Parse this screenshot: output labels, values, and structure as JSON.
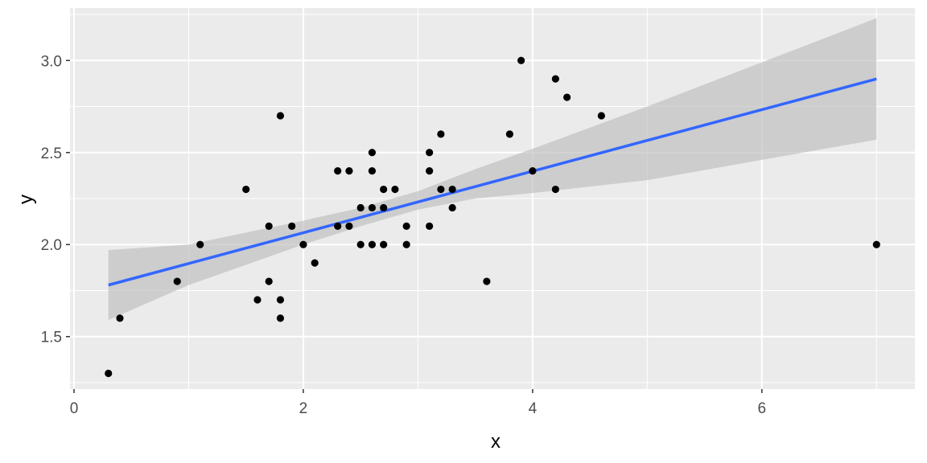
{
  "chart_data": {
    "type": "scatter",
    "xlabel": "x",
    "ylabel": "y",
    "xlim": [
      -0.035,
      7.335
    ],
    "ylim": [
      1.215,
      3.285
    ],
    "x_ticks": [
      0,
      2,
      4,
      6
    ],
    "x_tick_labels": [
      "0",
      "2",
      "4",
      "6"
    ],
    "y_ticks": [
      1.5,
      2.0,
      2.5,
      3.0
    ],
    "y_tick_labels": [
      "1.5",
      "2.0",
      "2.5",
      "3.0"
    ],
    "grid": true,
    "colors": {
      "panel": "#ebebeb",
      "grid": "#ffffff",
      "point": "#000000",
      "fit_line": "#3366ff",
      "ribbon": "#bdbdbd"
    },
    "points": [
      {
        "x": 0.3,
        "y": 1.3
      },
      {
        "x": 0.4,
        "y": 1.6
      },
      {
        "x": 0.9,
        "y": 1.8
      },
      {
        "x": 1.1,
        "y": 2.0
      },
      {
        "x": 1.5,
        "y": 2.3
      },
      {
        "x": 1.6,
        "y": 1.7
      },
      {
        "x": 1.7,
        "y": 2.1
      },
      {
        "x": 1.7,
        "y": 1.8
      },
      {
        "x": 1.8,
        "y": 2.7
      },
      {
        "x": 1.8,
        "y": 1.7
      },
      {
        "x": 1.8,
        "y": 1.6
      },
      {
        "x": 1.9,
        "y": 2.1
      },
      {
        "x": 2.0,
        "y": 2.0
      },
      {
        "x": 2.1,
        "y": 1.9
      },
      {
        "x": 2.3,
        "y": 2.4
      },
      {
        "x": 2.3,
        "y": 2.1
      },
      {
        "x": 2.4,
        "y": 2.4
      },
      {
        "x": 2.4,
        "y": 2.1
      },
      {
        "x": 2.5,
        "y": 2.2
      },
      {
        "x": 2.5,
        "y": 2.0
      },
      {
        "x": 2.6,
        "y": 2.5
      },
      {
        "x": 2.6,
        "y": 2.4
      },
      {
        "x": 2.6,
        "y": 2.2
      },
      {
        "x": 2.6,
        "y": 2.0
      },
      {
        "x": 2.7,
        "y": 2.3
      },
      {
        "x": 2.7,
        "y": 2.2
      },
      {
        "x": 2.7,
        "y": 2.0
      },
      {
        "x": 2.8,
        "y": 2.3
      },
      {
        "x": 2.9,
        "y": 2.1
      },
      {
        "x": 2.9,
        "y": 2.0
      },
      {
        "x": 3.1,
        "y": 2.5
      },
      {
        "x": 3.1,
        "y": 2.4
      },
      {
        "x": 3.1,
        "y": 2.1
      },
      {
        "x": 3.2,
        "y": 2.6
      },
      {
        "x": 3.2,
        "y": 2.3
      },
      {
        "x": 3.3,
        "y": 2.3
      },
      {
        "x": 3.3,
        "y": 2.2
      },
      {
        "x": 3.6,
        "y": 1.8
      },
      {
        "x": 3.8,
        "y": 2.6
      },
      {
        "x": 3.9,
        "y": 3.0
      },
      {
        "x": 4.0,
        "y": 2.4
      },
      {
        "x": 4.2,
        "y": 2.9
      },
      {
        "x": 4.2,
        "y": 2.3
      },
      {
        "x": 4.3,
        "y": 2.8
      },
      {
        "x": 4.6,
        "y": 2.7
      },
      {
        "x": 7.0,
        "y": 2.0
      }
    ],
    "fit_line": [
      {
        "x": 0.3,
        "y": 1.78
      },
      {
        "x": 7.0,
        "y": 2.9
      }
    ],
    "confidence_band": [
      {
        "x": 0.3,
        "lower": 1.59,
        "upper": 1.97
      },
      {
        "x": 1.0,
        "lower": 1.78,
        "upper": 2.0
      },
      {
        "x": 2.0,
        "lower": 2.0,
        "upper": 2.13
      },
      {
        "x": 2.5,
        "lower": 2.1,
        "upper": 2.2
      },
      {
        "x": 3.0,
        "lower": 2.19,
        "upper": 2.29
      },
      {
        "x": 3.5,
        "lower": 2.25,
        "upper": 2.41
      },
      {
        "x": 4.0,
        "lower": 2.28,
        "upper": 2.52
      },
      {
        "x": 5.0,
        "lower": 2.35,
        "upper": 2.75
      },
      {
        "x": 6.0,
        "lower": 2.46,
        "upper": 2.99
      },
      {
        "x": 7.0,
        "lower": 2.57,
        "upper": 3.23
      }
    ]
  }
}
